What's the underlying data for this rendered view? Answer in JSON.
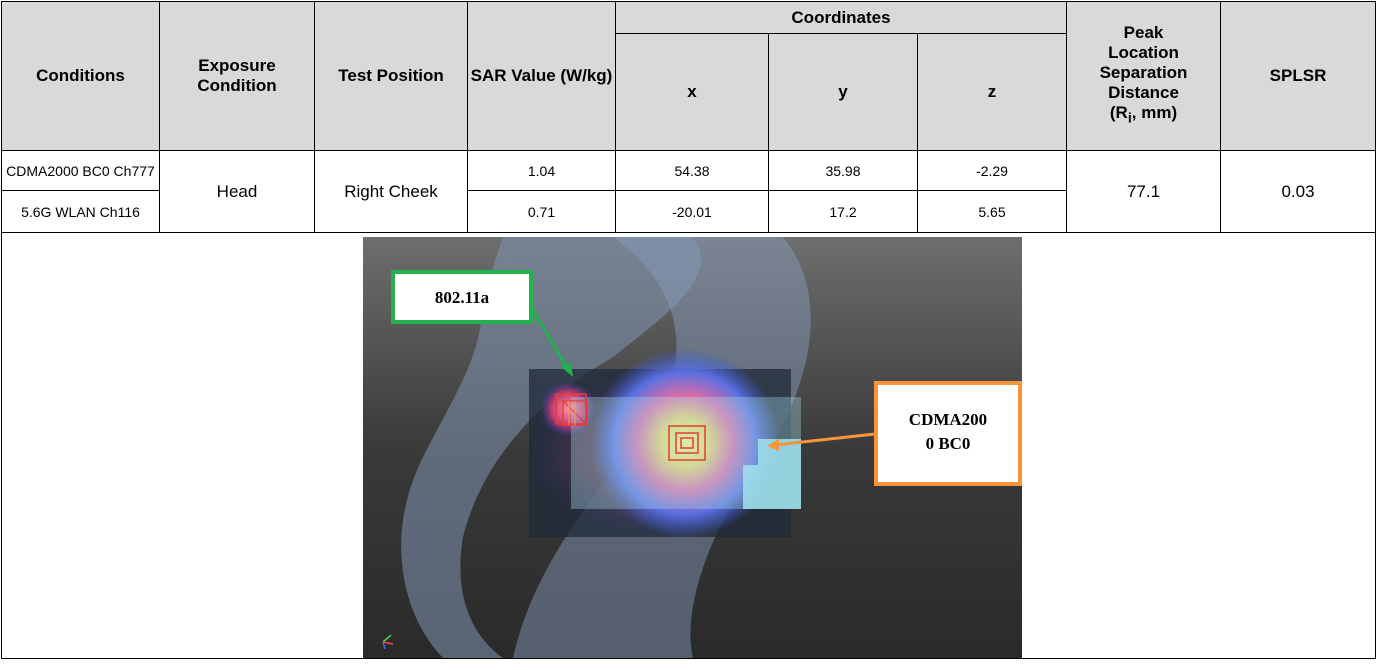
{
  "header": {
    "conditions": "Conditions",
    "exposure": "Exposure Condition",
    "test_position": "Test Position",
    "sar_value": "SAR Value (W/kg)",
    "coordinates": "Coordinates",
    "x": "x",
    "y": "y",
    "z": "z",
    "peak_l1": "Peak",
    "peak_l2": "Location",
    "peak_l3": "Separation",
    "peak_l4": "Distance",
    "peak_r": "(R",
    "peak_i": "i",
    "peak_mm": ", mm)",
    "splsr": "SPLSR"
  },
  "rows": [
    {
      "condition": "CDMA2000 BC0 Ch777",
      "sar": "1.04",
      "x": "54.38",
      "y": "35.98",
      "z": "-2.29"
    },
    {
      "condition": "5.6G WLAN Ch116",
      "sar": "0.71",
      "x": "-20.01",
      "y": "17.2",
      "z": "5.65"
    }
  ],
  "shared": {
    "exposure": "Head",
    "position": "Right Cheek",
    "distance": "77.1",
    "splsr": "0.03"
  },
  "figure": {
    "label_wlan": "802.11a",
    "label_cdma_l1": "CDMA200",
    "label_cdma_l2": "0 BC0"
  },
  "colors": {
    "header_bg": "#d9d9d9",
    "wlan_box": "#22b14c",
    "cdma_box": "#f7943c"
  }
}
